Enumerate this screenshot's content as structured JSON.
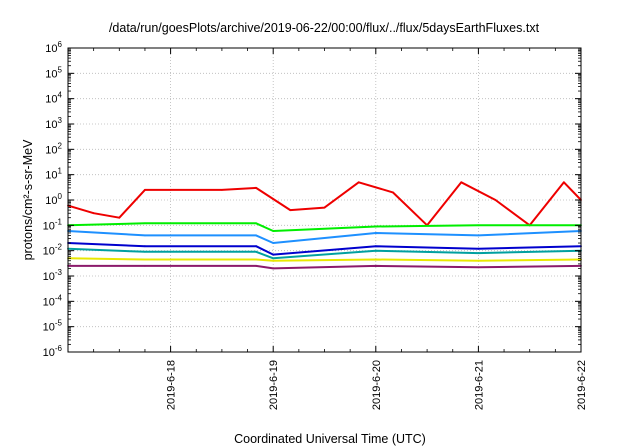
{
  "chart_data": {
    "type": "line",
    "title": "/data/run/goesPlots/archive/2019-06-22/00:00/flux/../flux/5daysEarthFluxes.txt",
    "xlabel": "Coordinated Universal Time (UTC)",
    "ylabel": "protons/cm²-s-sr-MeV",
    "yscale": "log",
    "ylim": [
      1e-06,
      1000000.0
    ],
    "xlim": [
      "2019-06-17 00:00",
      "2019-06-22 00:00"
    ],
    "grid": true,
    "x_ticks": [
      "2019-6-18",
      "2019-6-19",
      "2019-6-20",
      "2019-6-21",
      "2019-6-22"
    ],
    "y_ticks": [
      {
        "base": "10",
        "exp": "-6"
      },
      {
        "base": "10",
        "exp": "-5"
      },
      {
        "base": "10",
        "exp": "-4"
      },
      {
        "base": "10",
        "exp": "-3"
      },
      {
        "base": "10",
        "exp": "-2"
      },
      {
        "base": "10",
        "exp": "-1"
      },
      {
        "base": "10",
        "exp": "0"
      },
      {
        "base": "10",
        "exp": "1"
      },
      {
        "base": "10",
        "exp": "2"
      },
      {
        "base": "10",
        "exp": "3"
      },
      {
        "base": "10",
        "exp": "4"
      },
      {
        "base": "10",
        "exp": "5"
      },
      {
        "base": "10",
        "exp": "6"
      }
    ],
    "series": [
      {
        "color": "#ee0000",
        "x": [
          "2019-06-17 00:00",
          "2019-06-17 06:00",
          "2019-06-17 12:00",
          "2019-06-17 18:00",
          "2019-06-18 00:00",
          "2019-06-18 12:00",
          "2019-06-18 20:00",
          "2019-06-19 04:00",
          "2019-06-19 12:00",
          "2019-06-19 20:00",
          "2019-06-20 04:00",
          "2019-06-20 12:00",
          "2019-06-20 20:00",
          "2019-06-21 04:00",
          "2019-06-21 12:00",
          "2019-06-21 20:00",
          "2019-06-22 00:00"
        ],
        "values": [
          0.6,
          0.3,
          0.2,
          2.5,
          2.5,
          2.5,
          3.0,
          0.4,
          0.5,
          5.0,
          2.0,
          0.1,
          5.0,
          1.0,
          0.1,
          5.0,
          1.0
        ]
      },
      {
        "color": "#00ee00",
        "x": [
          "2019-06-17 00:00",
          "2019-06-17 18:00",
          "2019-06-18 20:00",
          "2019-06-19 00:00",
          "2019-06-20 00:00",
          "2019-06-21 00:00",
          "2019-06-22 00:00"
        ],
        "values": [
          0.1,
          0.12,
          0.12,
          0.06,
          0.09,
          0.1,
          0.1
        ]
      },
      {
        "color": "#1e90ff",
        "x": [
          "2019-06-17 00:00",
          "2019-06-17 18:00",
          "2019-06-18 20:00",
          "2019-06-19 00:00",
          "2019-06-20 00:00",
          "2019-06-21 00:00",
          "2019-06-22 00:00"
        ],
        "values": [
          0.06,
          0.04,
          0.04,
          0.02,
          0.05,
          0.04,
          0.06
        ]
      },
      {
        "color": "#0000cd",
        "x": [
          "2019-06-17 00:00",
          "2019-06-17 18:00",
          "2019-06-18 20:00",
          "2019-06-19 00:00",
          "2019-06-20 00:00",
          "2019-06-21 00:00",
          "2019-06-22 00:00"
        ],
        "values": [
          0.02,
          0.015,
          0.015,
          0.007,
          0.015,
          0.012,
          0.015
        ]
      },
      {
        "color": "#00a0a0",
        "x": [
          "2019-06-17 00:00",
          "2019-06-17 18:00",
          "2019-06-18 20:00",
          "2019-06-19 00:00",
          "2019-06-20 00:00",
          "2019-06-21 00:00",
          "2019-06-22 00:00"
        ],
        "values": [
          0.012,
          0.009,
          0.009,
          0.005,
          0.01,
          0.008,
          0.01
        ]
      },
      {
        "color": "#e8e800",
        "x": [
          "2019-06-17 00:00",
          "2019-06-17 18:00",
          "2019-06-18 20:00",
          "2019-06-19 00:00",
          "2019-06-20 00:00",
          "2019-06-21 00:00",
          "2019-06-22 00:00"
        ],
        "values": [
          0.005,
          0.0045,
          0.0045,
          0.004,
          0.0045,
          0.004,
          0.0045
        ]
      },
      {
        "color": "#8b1a6b",
        "x": [
          "2019-06-17 00:00",
          "2019-06-17 18:00",
          "2019-06-18 20:00",
          "2019-06-19 00:00",
          "2019-06-20 00:00",
          "2019-06-21 00:00",
          "2019-06-22 00:00"
        ],
        "values": [
          0.0025,
          0.0025,
          0.0025,
          0.002,
          0.0025,
          0.0022,
          0.0025
        ]
      }
    ]
  }
}
